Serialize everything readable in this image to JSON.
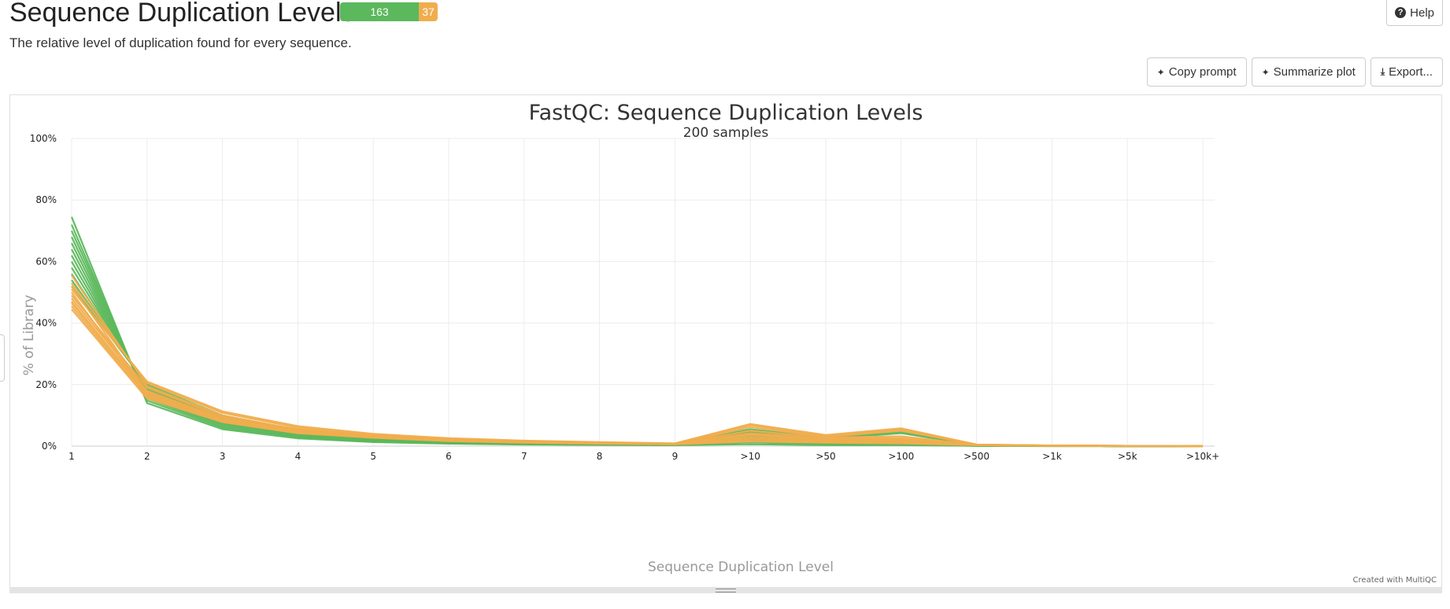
{
  "header": {
    "title": "Sequence Duplication Levels",
    "pass_count": "163",
    "warn_count": "37",
    "help_label": "Help",
    "description": "The relative level of duplication found for every sequence."
  },
  "toolbar": {
    "copy_prompt_label": "Copy prompt",
    "summarize_label": "Summarize plot",
    "export_label": "Export..."
  },
  "credit": "Created with MultiQC",
  "colors": {
    "pass": "#5cb85c",
    "warn": "#f0ad4e"
  },
  "chart_data": {
    "type": "line",
    "title": "FastQC: Sequence Duplication Levels",
    "subtitle": "200 samples",
    "xlabel": "Sequence Duplication Level",
    "ylabel": "% of Library",
    "categories": [
      "1",
      "2",
      "3",
      "4",
      "5",
      "6",
      "7",
      "8",
      "9",
      ">10",
      ">50",
      ">100",
      ">500",
      ">1k",
      ">5k",
      ">10k+"
    ],
    "yticks": [
      "0%",
      "20%",
      "40%",
      "60%",
      "80%",
      "100%"
    ],
    "ylim": [
      0,
      100
    ],
    "grid": true,
    "series": [
      {
        "status": "pass",
        "values": [
          74.5,
          14.0,
          5.5,
          2.5,
          1.3,
          0.8,
          0.5,
          0.4,
          0.3,
          0.6,
          0.3,
          0.3,
          0.1,
          0.0,
          0.0,
          0.0
        ]
      },
      {
        "status": "pass",
        "values": [
          72.0,
          14.8,
          6.0,
          2.8,
          1.5,
          0.9,
          0.6,
          0.4,
          0.3,
          1.2,
          0.6,
          0.5,
          0.1,
          0.0,
          0.0,
          0.0
        ]
      },
      {
        "status": "pass",
        "values": [
          70.0,
          15.5,
          6.5,
          3.0,
          1.6,
          1.0,
          0.7,
          0.5,
          0.4,
          1.5,
          0.8,
          0.6,
          0.1,
          0.1,
          0.0,
          0.0
        ]
      },
      {
        "status": "pass",
        "values": [
          68.0,
          16.0,
          7.0,
          3.2,
          1.8,
          1.1,
          0.7,
          0.5,
          0.4,
          2.0,
          1.0,
          0.8,
          0.1,
          0.1,
          0.0,
          0.0
        ]
      },
      {
        "status": "pass",
        "values": [
          66.0,
          16.5,
          7.4,
          3.5,
          1.9,
          1.2,
          0.8,
          0.6,
          0.4,
          2.5,
          1.2,
          1.0,
          0.2,
          0.1,
          0.0,
          0.0
        ]
      },
      {
        "status": "pass",
        "values": [
          64.0,
          17.0,
          7.8,
          3.7,
          2.0,
          1.3,
          0.8,
          0.6,
          0.5,
          2.8,
          1.3,
          1.1,
          0.2,
          0.1,
          0.0,
          0.0
        ]
      },
      {
        "status": "pass",
        "values": [
          62.0,
          17.5,
          8.2,
          4.0,
          2.2,
          1.4,
          0.9,
          0.7,
          0.5,
          3.2,
          1.5,
          1.3,
          0.2,
          0.1,
          0.0,
          0.0
        ]
      },
      {
        "status": "pass",
        "values": [
          60.0,
          18.0,
          8.6,
          4.2,
          2.3,
          1.5,
          1.0,
          0.7,
          0.5,
          3.6,
          1.7,
          1.5,
          0.2,
          0.1,
          0.0,
          0.0
        ]
      },
      {
        "status": "pass",
        "values": [
          58.0,
          18.5,
          9.0,
          4.5,
          2.5,
          1.6,
          1.0,
          0.8,
          0.6,
          4.0,
          1.9,
          1.7,
          0.3,
          0.1,
          0.0,
          0.0
        ]
      },
      {
        "status": "pass",
        "values": [
          56.0,
          19.0,
          9.2,
          4.7,
          2.6,
          1.7,
          1.1,
          0.8,
          0.6,
          4.4,
          2.1,
          1.9,
          0.3,
          0.1,
          0.0,
          0.0
        ]
      },
      {
        "status": "pass",
        "values": [
          54.0,
          19.5,
          9.5,
          5.0,
          2.8,
          1.8,
          1.2,
          0.9,
          0.6,
          4.8,
          2.4,
          4.2,
          0.3,
          0.1,
          0.0,
          0.0
        ]
      },
      {
        "status": "pass",
        "values": [
          52.0,
          20.0,
          10.0,
          5.2,
          3.0,
          1.9,
          1.3,
          0.9,
          0.7,
          5.5,
          2.8,
          4.5,
          0.3,
          0.1,
          0.0,
          0.0
        ]
      },
      {
        "status": "warn",
        "values": [
          55.5,
          19.5,
          10.0,
          5.4,
          3.2,
          2.0,
          1.4,
          1.0,
          0.7,
          6.2,
          3.0,
          5.0,
          0.4,
          0.2,
          0.1,
          0.0
        ]
      },
      {
        "status": "warn",
        "values": [
          53.0,
          20.5,
          10.8,
          6.0,
          3.6,
          2.3,
          1.6,
          1.1,
          0.8,
          6.8,
          3.3,
          5.4,
          0.5,
          0.2,
          0.1,
          0.0
        ]
      },
      {
        "status": "warn",
        "values": [
          51.0,
          21.0,
          11.3,
          6.5,
          4.0,
          2.6,
          1.8,
          1.3,
          0.9,
          7.2,
          3.6,
          5.8,
          0.5,
          0.2,
          0.1,
          0.0
        ]
      },
      {
        "status": "warn",
        "values": [
          49.0,
          19.0,
          9.5,
          5.5,
          3.4,
          2.2,
          1.5,
          1.1,
          0.8,
          5.0,
          2.8,
          3.2,
          0.4,
          0.2,
          0.1,
          0.0
        ]
      },
      {
        "status": "warn",
        "values": [
          48.0,
          18.0,
          9.0,
          5.0,
          3.1,
          2.0,
          1.4,
          1.0,
          0.7,
          4.2,
          2.5,
          2.6,
          0.4,
          0.2,
          0.1,
          0.0
        ]
      },
      {
        "status": "warn",
        "values": [
          47.0,
          17.0,
          8.6,
          4.8,
          3.0,
          1.9,
          1.3,
          1.0,
          0.7,
          3.6,
          2.2,
          2.2,
          0.4,
          0.2,
          0.1,
          0.0
        ]
      },
      {
        "status": "warn",
        "values": [
          46.5,
          16.5,
          8.3,
          4.6,
          2.9,
          1.8,
          1.2,
          0.9,
          0.7,
          3.0,
          1.9,
          1.8,
          0.3,
          0.2,
          0.1,
          0.0
        ]
      },
      {
        "status": "warn",
        "values": [
          45.5,
          16.0,
          8.0,
          4.4,
          2.8,
          1.7,
          1.2,
          0.9,
          0.6,
          2.4,
          1.6,
          1.5,
          0.3,
          0.1,
          0.1,
          0.0
        ]
      },
      {
        "status": "warn",
        "values": [
          44.5,
          15.5,
          7.8,
          4.2,
          2.7,
          1.6,
          1.1,
          0.8,
          0.6,
          1.8,
          1.3,
          1.2,
          0.3,
          0.1,
          0.0,
          0.0
        ]
      },
      {
        "status": "warn",
        "values": [
          52.0,
          17.5,
          8.8,
          5.0,
          3.1,
          2.0,
          1.4,
          1.0,
          0.7,
          3.8,
          2.0,
          2.0,
          0.4,
          0.2,
          0.1,
          0.0
        ]
      },
      {
        "status": "warn",
        "values": [
          50.0,
          16.8,
          8.4,
          4.7,
          2.9,
          1.9,
          1.3,
          0.9,
          0.6,
          1.5,
          1.1,
          0.9,
          0.3,
          0.1,
          0.0,
          0.0
        ]
      }
    ]
  }
}
